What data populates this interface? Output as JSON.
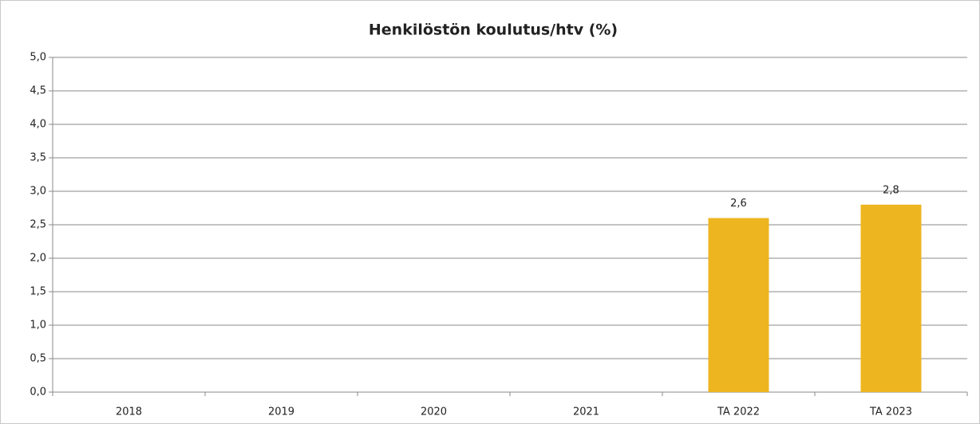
{
  "chart_data": {
    "type": "bar",
    "title": "Henkilöstön koulutus/htv (%)",
    "categories": [
      "2018",
      "2019",
      "2020",
      "2021",
      "TA 2022",
      "TA 2023"
    ],
    "values": [
      null,
      null,
      null,
      null,
      2.6,
      2.8
    ],
    "value_labels": [
      null,
      null,
      null,
      null,
      "2,6",
      "2,8"
    ],
    "color": "#edb520",
    "ylim": [
      0,
      5
    ],
    "yticks": [
      {
        "value": 0,
        "label": "0,0"
      },
      {
        "value": 0.5,
        "label": "0,5"
      },
      {
        "value": 1,
        "label": "1,0"
      },
      {
        "value": 1.5,
        "label": "1,5"
      },
      {
        "value": 2,
        "label": "2,0"
      },
      {
        "value": 2.5,
        "label": "2,5"
      },
      {
        "value": 3,
        "label": "3,0"
      },
      {
        "value": 3.5,
        "label": "3,5"
      },
      {
        "value": 4,
        "label": "4,0"
      },
      {
        "value": 4.5,
        "label": "4,5"
      },
      {
        "value": 5,
        "label": "5,0"
      }
    ],
    "grid": true
  }
}
